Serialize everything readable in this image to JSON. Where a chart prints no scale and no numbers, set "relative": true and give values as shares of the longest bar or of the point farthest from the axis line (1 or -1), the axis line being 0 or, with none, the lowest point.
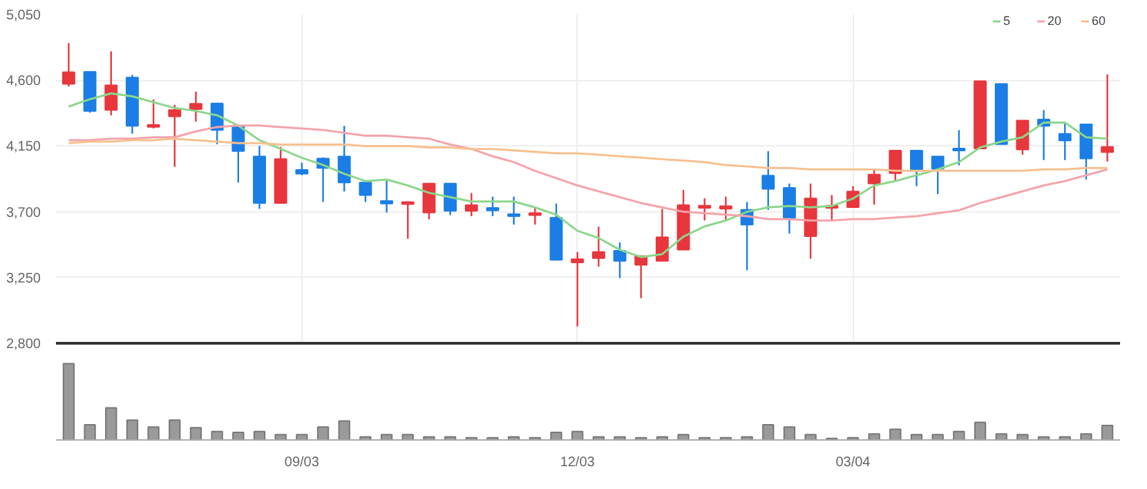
{
  "chart_data": [
    {
      "type": "candlestick",
      "categories": [
        null,
        null,
        null,
        null,
        null,
        null,
        null,
        null,
        null,
        null,
        null,
        null,
        null,
        null,
        null,
        null,
        null,
        null,
        null,
        null,
        null,
        null,
        null,
        null,
        null,
        null,
        null,
        null,
        null,
        null,
        null,
        null,
        null,
        null,
        null,
        null,
        null,
        null,
        null,
        null,
        null,
        null,
        null,
        null,
        null,
        null,
        null,
        null,
        null,
        null
      ],
      "ohlc": [
        [
          4575,
          4855,
          4557,
          4655
        ],
        [
          4658,
          4658,
          4378,
          4389
        ],
        [
          4396,
          4798,
          4360,
          4565
        ],
        [
          4619,
          4637,
          4234,
          4288
        ],
        [
          4281,
          4468,
          4270,
          4295
        ],
        [
          4353,
          4432,
          4008,
          4396
        ],
        [
          4403,
          4522,
          4317,
          4439
        ],
        [
          4442,
          4442,
          4162,
          4259
        ],
        [
          4288,
          4295,
          3900,
          4115
        ],
        [
          4079,
          4151,
          3720,
          3760
        ],
        [
          3760,
          4144,
          3760,
          4061
        ],
        [
          3986,
          4036,
          3950,
          3961
        ],
        [
          4065,
          4072,
          3767,
          4000
        ],
        [
          4079,
          4288,
          3839,
          3900
        ],
        [
          3900,
          3900,
          3767,
          3814
        ],
        [
          3774,
          3911,
          3695,
          3756
        ],
        [
          3752,
          3767,
          3515,
          3767
        ],
        [
          3695,
          3893,
          3648,
          3893
        ],
        [
          3893,
          3893,
          3677,
          3706
        ],
        [
          3706,
          3828,
          3670,
          3745
        ],
        [
          3727,
          3803,
          3670,
          3709
        ],
        [
          3684,
          3803,
          3612,
          3670
        ],
        [
          3677,
          3731,
          3612,
          3691
        ],
        [
          3659,
          3756,
          3371,
          3371
        ],
        [
          3353,
          3425,
          2915,
          3375
        ],
        [
          3382,
          3598,
          3325,
          3425
        ],
        [
          3433,
          3490,
          3246,
          3364
        ],
        [
          3336,
          3397,
          3109,
          3397
        ],
        [
          3364,
          3720,
          3364,
          3526
        ],
        [
          3440,
          3849,
          3440,
          3745
        ],
        [
          3727,
          3792,
          3641,
          3742
        ],
        [
          3720,
          3803,
          3641,
          3738
        ],
        [
          3713,
          3767,
          3300,
          3612
        ],
        [
          3947,
          4115,
          3713,
          3857
        ],
        [
          3864,
          3893,
          3551,
          3659
        ],
        [
          3533,
          3893,
          3379,
          3792
        ],
        [
          3727,
          3814,
          3641,
          3742
        ],
        [
          3731,
          3875,
          3731,
          3839
        ],
        [
          3893,
          3993,
          3749,
          3954
        ],
        [
          3964,
          4119,
          3911,
          4119
        ],
        [
          4119,
          4119,
          3875,
          3982
        ],
        [
          4079,
          4079,
          3821,
          3993
        ],
        [
          4133,
          4259,
          4018,
          4119
        ],
        [
          4133,
          4594,
          4133,
          4594
        ],
        [
          4575,
          4575,
          4162,
          4162
        ],
        [
          4126,
          4324,
          4090,
          4324
        ],
        [
          4331,
          4396,
          4054,
          4288
        ],
        [
          4234,
          4306,
          4054,
          4187
        ],
        [
          4299,
          4299,
          3921,
          4065
        ],
        [
          4108,
          4640,
          4044,
          4144
        ]
      ],
      "colors": [
        "#e8363d",
        "#1a7ee6",
        "#e8363d",
        "#1a7ee6",
        "#e8363d",
        "#e8363d",
        "#e8363d",
        "#1a7ee6",
        "#1a7ee6",
        "#1a7ee6",
        "#e8363d",
        "#1a7ee6",
        "#1a7ee6",
        "#1a7ee6",
        "#1a7ee6",
        "#1a7ee6",
        "#e8363d",
        "#e8363d",
        "#1a7ee6",
        "#e8363d",
        "#1a7ee6",
        "#1a7ee6",
        "#e8363d",
        "#1a7ee6",
        "#e8363d",
        "#e8363d",
        "#1a7ee6",
        "#e8363d",
        "#e8363d",
        "#e8363d",
        "#e8363d",
        "#e8363d",
        "#1a7ee6",
        "#1a7ee6",
        "#1a7ee6",
        "#e8363d",
        "#e8363d",
        "#e8363d",
        "#e8363d",
        "#e8363d",
        "#1a7ee6",
        "#1a7ee6",
        "#1a7ee6",
        "#e8363d",
        "#1a7ee6",
        "#e8363d",
        "#1a7ee6",
        "#1a7ee6",
        "#1a7ee6",
        "#e8363d"
      ],
      "series": [
        {
          "type": "line",
          "name": "5",
          "color": "#8cd68a",
          "values": [
            4420,
            4470,
            4510,
            4490,
            4450,
            4410,
            4390,
            4360,
            4290,
            4190,
            4130,
            4070,
            4020,
            3960,
            3910,
            3920,
            3880,
            3830,
            3800,
            3770,
            3770,
            3770,
            3730,
            3680,
            3570,
            3520,
            3440,
            3390,
            3410,
            3530,
            3600,
            3640,
            3700,
            3730,
            3740,
            3730,
            3740,
            3790,
            3880,
            3910,
            3950,
            3990,
            4040,
            4140,
            4180,
            4210,
            4310,
            4310,
            4210,
            4200
          ]
        },
        {
          "type": "line",
          "name": "20",
          "color": "#f4a3aa",
          "values": [
            4190,
            4190,
            4200,
            4200,
            4210,
            4210,
            4250,
            4280,
            4290,
            4290,
            4280,
            4270,
            4260,
            4240,
            4220,
            4220,
            4210,
            4200,
            4160,
            4130,
            4080,
            4040,
            3980,
            3930,
            3880,
            3840,
            3800,
            3760,
            3730,
            3700,
            3690,
            3680,
            3670,
            3650,
            3650,
            3640,
            3640,
            3650,
            3650,
            3660,
            3670,
            3690,
            3710,
            3760,
            3800,
            3840,
            3880,
            3910,
            3950,
            3990
          ]
        },
        {
          "type": "line",
          "name": "60",
          "color": "#f7c08e",
          "values": [
            4170,
            4180,
            4180,
            4190,
            4190,
            4200,
            4190,
            4180,
            4170,
            4170,
            4160,
            4160,
            4160,
            4160,
            4150,
            4150,
            4150,
            4140,
            4140,
            4130,
            4130,
            4120,
            4110,
            4100,
            4100,
            4090,
            4080,
            4070,
            4060,
            4050,
            4040,
            4020,
            4010,
            4000,
            4000,
            3990,
            3990,
            3990,
            3990,
            3980,
            3980,
            3980,
            3980,
            3980,
            3980,
            3980,
            3990,
            3990,
            4000,
            4000
          ]
        }
      ],
      "ylim": [
        2800,
        5050
      ],
      "yticks": [
        {
          "value": 2800,
          "label": "2,800"
        },
        {
          "value": 3250,
          "label": "3,250"
        },
        {
          "value": 3700,
          "label": "3,700"
        },
        {
          "value": 4150,
          "label": "4,150"
        },
        {
          "value": 4600,
          "label": "4,600"
        },
        {
          "value": 5050,
          "label": "5,050"
        }
      ],
      "grid": true,
      "legend": "top right",
      "tick_labels": "y"
    },
    {
      "type": "bar",
      "relative": true,
      "categories": [
        null,
        null,
        null,
        null,
        null,
        null,
        null,
        null,
        null,
        null,
        null,
        "09/03",
        null,
        null,
        null,
        null,
        null,
        null,
        null,
        null,
        null,
        null,
        null,
        null,
        "12/03",
        null,
        null,
        null,
        null,
        null,
        null,
        null,
        null,
        null,
        null,
        null,
        null,
        "03/04",
        null,
        null,
        null,
        null,
        null,
        null,
        null,
        null,
        null,
        null,
        null,
        null
      ],
      "values": [
        1,
        0.2,
        0.42,
        0.26,
        0.17,
        0.26,
        0.16,
        0.11,
        0.1,
        0.11,
        0.07,
        0.07,
        0.17,
        0.25,
        0.04,
        0.07,
        0.07,
        0.04,
        0.04,
        0.03,
        0.03,
        0.04,
        0.03,
        0.1,
        0.11,
        0.04,
        0.04,
        0.03,
        0.04,
        0.07,
        0.03,
        0.03,
        0.04,
        0.2,
        0.17,
        0.07,
        0.02,
        0.03,
        0.08,
        0.14,
        0.07,
        0.07,
        0.11,
        0.23,
        0.08,
        0.07,
        0.04,
        0.04,
        0.08,
        0.19
      ],
      "color": "#9a9a9a",
      "tick_labels": "x"
    }
  ]
}
